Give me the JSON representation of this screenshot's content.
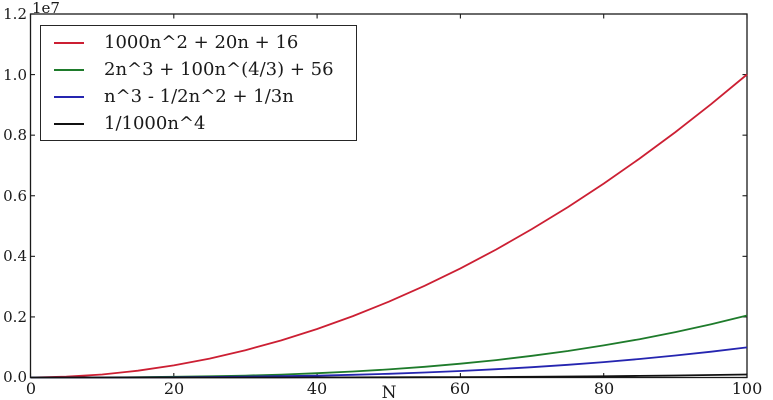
{
  "figure": {
    "background": "#ffffff",
    "spine_color": "#1a1a1a"
  },
  "axes": {
    "offset_text": "1e7",
    "xlabel": "N",
    "x_ticks": [
      0,
      20,
      40,
      60,
      80,
      100
    ],
    "x_tick_labels": [
      "0",
      "20",
      "40",
      "60",
      "80",
      "100"
    ],
    "y_ticks": [
      0,
      2000000,
      4000000,
      6000000,
      8000000,
      10000000,
      12000000
    ],
    "y_tick_labels": [
      "0.0",
      "0.2",
      "0.4",
      "0.6",
      "0.8",
      "1.0",
      "1.2"
    ]
  },
  "legend": {
    "entries": [
      {
        "label": "1000n^2 + 20n + 16",
        "color": "#cc1f33"
      },
      {
        "label": "2n^3 + 100n^(4/3) + 56",
        "color": "#1e7b2b"
      },
      {
        "label": "n^3 - 1/2n^2 + 1/3n",
        "color": "#2525b0"
      },
      {
        "label": "1/1000n^4",
        "color": "#111111"
      }
    ]
  },
  "chart_data": {
    "type": "line",
    "title": "",
    "xlabel": "N",
    "ylabel": "",
    "xlim": [
      0,
      100
    ],
    "ylim": [
      0,
      12000000
    ],
    "y_offset_text": "1e7",
    "grid": false,
    "legend_position": "upper left",
    "x": [
      0,
      5,
      10,
      15,
      20,
      25,
      30,
      35,
      40,
      45,
      50,
      55,
      60,
      65,
      70,
      75,
      80,
      85,
      90,
      95,
      100
    ],
    "series": [
      {
        "name": "1000n^2 + 20n + 16",
        "color": "#cc1f33",
        "values": [
          16,
          25116,
          100216,
          225316,
          400416,
          625516,
          900616,
          1225716,
          1600816,
          2025916,
          2501016,
          3026116,
          3601216,
          4226316,
          4901416,
          5626516,
          6401616,
          7226716,
          8101816,
          9026916,
          10002016
        ]
      },
      {
        "name": "2n^3 + 100n^(4/3) + 56",
        "color": "#1e7b2b",
        "values": [
          56,
          1161,
          4210,
          10505,
          21485,
          38616,
          63378,
          97255,
          141736,
          198312,
          268476,
          353722,
          455545,
          575441,
          714905,
          875435,
          1058527,
          1265679,
          1498388,
          1758153,
          2046472
        ]
      },
      {
        "name": "n^3 - 1/2n^2 + 1/3n",
        "color": "#2525b0",
        "values": [
          0,
          114,
          953,
          3268,
          7807,
          15321,
          26560,
          42274,
          63213,
          90128,
          123767,
          164881,
          214220,
          272534,
          340573,
          419088,
          508827,
          610541,
          724980,
          852894,
          995033
        ]
      },
      {
        "name": "1/1000n^4",
        "color": "#111111",
        "values": [
          0,
          1,
          10,
          51,
          160,
          391,
          810,
          1501,
          2560,
          4101,
          6250,
          9151,
          12960,
          17851,
          24010,
          31641,
          40960,
          52201,
          65610,
          81451,
          100000
        ]
      }
    ]
  }
}
